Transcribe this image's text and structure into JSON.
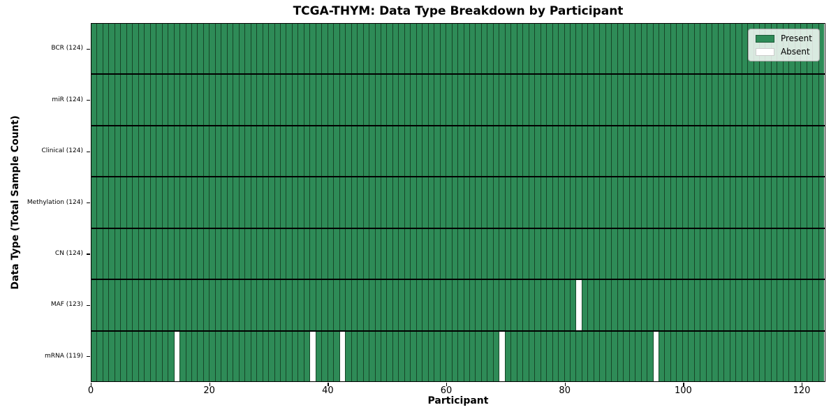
{
  "colors": {
    "present": "#2e8b57",
    "absent": "#ffffff",
    "cell_edge": "#174628",
    "row_divider": "#000000",
    "plot_border": "#000000",
    "legend_border": "#a3a3a3"
  },
  "chart_data": {
    "type": "heatmap",
    "title": "TCGA-THYM: Data Type Breakdown by Participant",
    "xlabel": "Participant",
    "ylabel": "Data Type (Total Sample Count)",
    "n_participants": 124,
    "x_range": [
      0,
      124
    ],
    "x_ticks": [
      0,
      20,
      40,
      60,
      80,
      100,
      120
    ],
    "legend_labels": [
      "Present",
      "Absent"
    ],
    "legend_position": "upper right",
    "grid": "cell-edges-only",
    "rows": [
      {
        "name": "BCR",
        "label": "BCR (124)",
        "present_count": 124,
        "absent_participants": []
      },
      {
        "name": "miR",
        "label": "miR (124)",
        "present_count": 124,
        "absent_participants": []
      },
      {
        "name": "Clinical",
        "label": "Clinical (124)",
        "present_count": 124,
        "absent_participants": []
      },
      {
        "name": "Methylation",
        "label": "Methylation (124)",
        "present_count": 124,
        "absent_participants": []
      },
      {
        "name": "CN",
        "label": "CN (124)",
        "present_count": 124,
        "absent_participants": []
      },
      {
        "name": "MAF",
        "label": "MAF (123)",
        "present_count": 123,
        "absent_participants": [
          82
        ]
      },
      {
        "name": "mRNA",
        "label": "mRNA (119)",
        "present_count": 119,
        "absent_participants": [
          14,
          37,
          42,
          69,
          95
        ]
      }
    ]
  }
}
